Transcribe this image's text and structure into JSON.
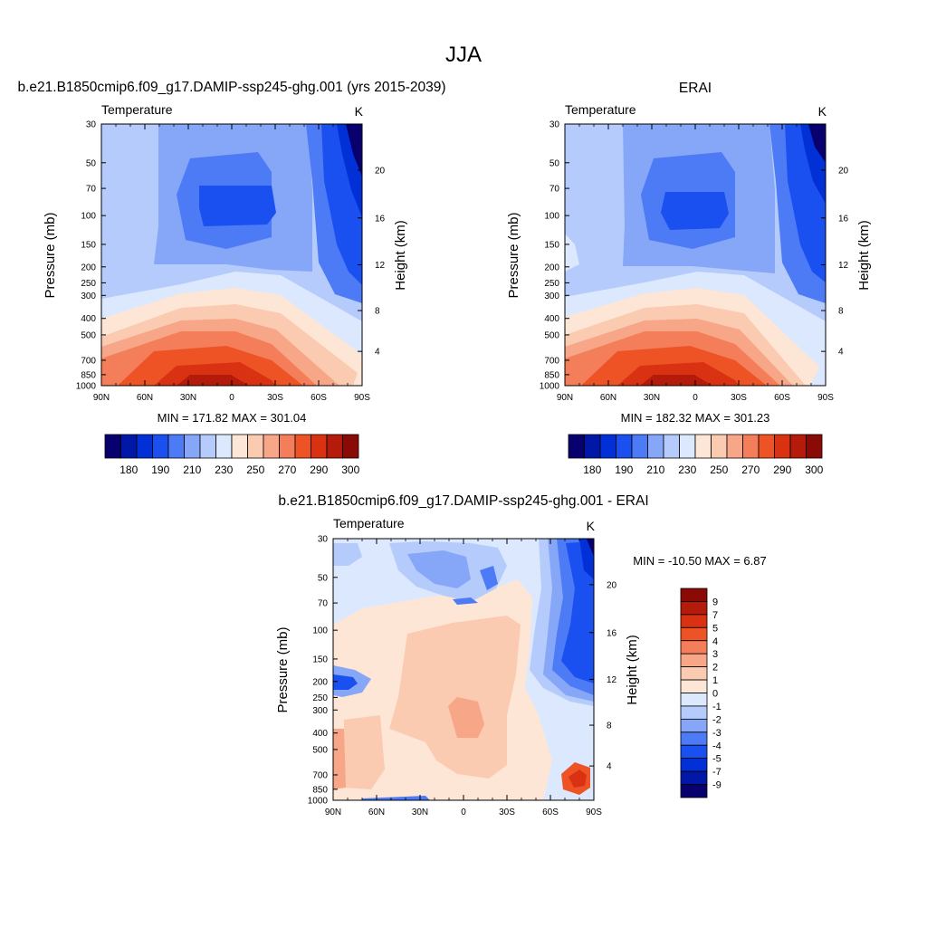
{
  "page_title": "JJA",
  "chart_data": [
    {
      "type": "heatmap",
      "title": "b.e21.B1850cmip6.f09_g17.DAMIP-ssp245-ghg.001 (yrs 2015-2039)",
      "left_label": "Temperature",
      "right_label": "K",
      "ylabel": "Pressure (mb)",
      "ylabel_right": "Height (km)",
      "x_ticks": [
        "90N",
        "60N",
        "30N",
        "0",
        "30S",
        "60S",
        "90S"
      ],
      "y_ticks": [
        "30",
        "50",
        "70",
        "100",
        "150",
        "200",
        "250",
        "300",
        "400",
        "500",
        "700",
        "850",
        "1000"
      ],
      "y_ticks_right": [
        "20",
        "16",
        "12",
        "8",
        "4"
      ],
      "stats": "MIN = 171.82  MAX = 301.04",
      "colorbar_labels": [
        "180",
        "190",
        "210",
        "230",
        "250",
        "270",
        "290",
        "300"
      ],
      "colorbar_colors": [
        "#08006e",
        "#0017a8",
        "#0030d6",
        "#1a4ff0",
        "#4d7af5",
        "#86a6f8",
        "#b4cbfb",
        "#dbe8fd",
        "#fde6d6",
        "#fbcbb1",
        "#f8a688",
        "#f47e5a",
        "#ee5326",
        "#d83212",
        "#b51b0a",
        "#8a0a05"
      ]
    },
    {
      "type": "heatmap",
      "title": "ERAI",
      "left_label": "Temperature",
      "right_label": "K",
      "ylabel": "Pressure (mb)",
      "ylabel_right": "Height (km)",
      "x_ticks": [
        "90N",
        "60N",
        "30N",
        "0",
        "30S",
        "60S",
        "90S"
      ],
      "y_ticks": [
        "30",
        "50",
        "70",
        "100",
        "150",
        "200",
        "250",
        "300",
        "400",
        "500",
        "700",
        "850",
        "1000"
      ],
      "y_ticks_right": [
        "20",
        "16",
        "12",
        "8",
        "4"
      ],
      "stats": "MIN = 182.32  MAX = 301.23",
      "colorbar_labels": [
        "180",
        "190",
        "210",
        "230",
        "250",
        "270",
        "290",
        "300"
      ],
      "colorbar_colors": [
        "#08006e",
        "#0017a8",
        "#0030d6",
        "#1a4ff0",
        "#4d7af5",
        "#86a6f8",
        "#b4cbfb",
        "#dbe8fd",
        "#fde6d6",
        "#fbcbb1",
        "#f8a688",
        "#f47e5a",
        "#ee5326",
        "#d83212",
        "#b51b0a",
        "#8a0a05"
      ]
    },
    {
      "type": "heatmap",
      "title": "b.e21.B1850cmip6.f09_g17.DAMIP-ssp245-ghg.001 - ERAI",
      "left_label": "Temperature",
      "right_label": "K",
      "ylabel": "Pressure (mb)",
      "ylabel_right": "Height (km)",
      "x_ticks": [
        "90N",
        "60N",
        "30N",
        "0",
        "30S",
        "60S",
        "90S"
      ],
      "y_ticks": [
        "30",
        "50",
        "70",
        "100",
        "150",
        "200",
        "250",
        "300",
        "400",
        "500",
        "700",
        "850",
        "1000"
      ],
      "y_ticks_right": [
        "20",
        "16",
        "12",
        "8",
        "4"
      ],
      "stats": "MIN = -10.50  MAX =   6.87",
      "colorbar_labels": [
        "9",
        "7",
        "5",
        "4",
        "3",
        "2",
        "1",
        "0",
        "-1",
        "-2",
        "-3",
        "-4",
        "-5",
        "-7",
        "-9"
      ],
      "colorbar_colors": [
        "#8a0a05",
        "#b51b0a",
        "#d83212",
        "#ee5326",
        "#f47e5a",
        "#f8a688",
        "#fbcbb1",
        "#fde6d6",
        "#dbe8fd",
        "#b4cbfb",
        "#86a6f8",
        "#4d7af5",
        "#1a4ff0",
        "#0030d6",
        "#0017a8",
        "#08006e"
      ]
    }
  ]
}
